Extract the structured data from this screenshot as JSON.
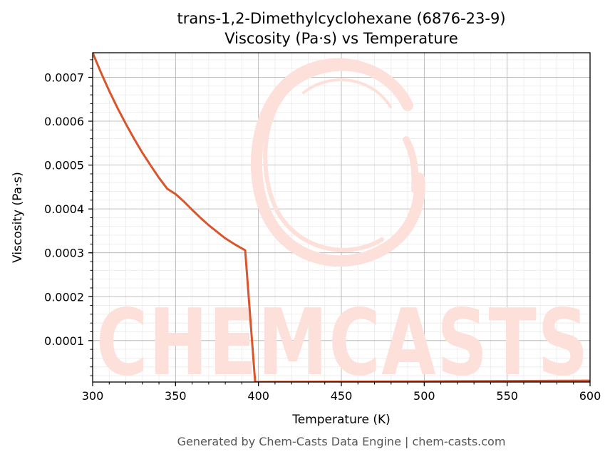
{
  "chart_data": {
    "type": "line",
    "title": "trans-1,2-Dimethylcyclohexane (6876-23-9)",
    "subtitle": "Viscosity (Pa·s) vs Temperature",
    "xlabel": "Temperature (K)",
    "ylabel": "Viscosity (Pa·s)",
    "xlim": [
      300,
      600
    ],
    "ylim": [
      5.5e-06,
      0.000756
    ],
    "xticks": [
      300,
      350,
      400,
      450,
      500,
      550,
      600
    ],
    "xtick_labels": [
      "300",
      "350",
      "400",
      "450",
      "500",
      "550",
      "600"
    ],
    "yticks": [
      0.0001,
      0.0002,
      0.0003,
      0.0004,
      0.0005,
      0.0006,
      0.0007
    ],
    "ytick_labels": [
      "0.0001",
      "0.0002",
      "0.0003",
      "0.0004",
      "0.0005",
      "0.0006",
      "0.0007"
    ],
    "grid": true,
    "series": [
      {
        "name": "Viscosity",
        "color": "#d9552b",
        "x": [
          300,
          305,
          310,
          315,
          320,
          325,
          330,
          335,
          340,
          345,
          350,
          355,
          360,
          365,
          370,
          375,
          380,
          385,
          390,
          392,
          398,
          400,
          450,
          500,
          550,
          600
        ],
        "y": [
          0.000756,
          0.000711,
          0.000669,
          0.00063,
          0.000594,
          0.00056,
          0.000528,
          0.000499,
          0.000471,
          0.000446,
          0.000434,
          0.000417,
          0.000398,
          0.00038,
          0.000363,
          0.000348,
          0.000333,
          0.000321,
          0.00031,
          0.000306,
          5.5e-06,
          5.6e-06,
          6.3e-06,
          7e-06,
          7.7e-06,
          8.5e-06
        ]
      }
    ]
  },
  "watermark": {
    "text": "CHEMCASTS",
    "color": "#fde0da"
  },
  "footer": {
    "text": "Generated by Chem-Casts Data Engine | chem-casts.com"
  }
}
